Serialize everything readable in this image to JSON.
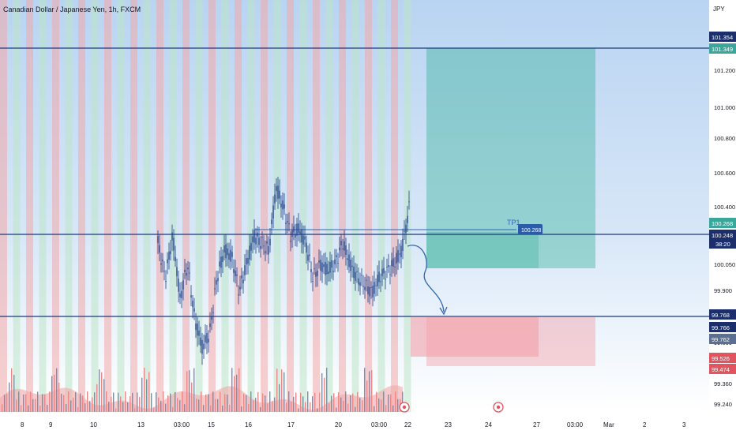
{
  "header": {
    "title": "Canadian Dollar / Japanese Yen, 1h, FXCM",
    "currency": "JPY"
  },
  "colors": {
    "grid": "#eef0f3",
    "up": "#1e3f8a",
    "down": "#1e3f8a",
    "profit_zone": "#1aa88a",
    "loss_zone": "#f3a0a8",
    "horizontal_line": "#1c3a7a",
    "band_red": "#f3aaaa",
    "band_green": "#bde6c8",
    "volume_area": "#f2a8a8",
    "axis_text": "#131722",
    "tag_dark": "#1c2f6a",
    "tag_blue": "#2a5ca8",
    "tag_teal": "#3aa79a",
    "tag_red": "#e05560"
  },
  "price_axis": {
    "ticks": [
      "101.200",
      "101.000",
      "100.800",
      "100.600",
      "100.400",
      "100.050",
      "99.900",
      "99.600",
      "99.360",
      "99.240"
    ],
    "tags": [
      {
        "value": "101.354",
        "style": "dark"
      },
      {
        "value": "101.349",
        "style": "teal"
      },
      {
        "value": "100.268",
        "style": "teal"
      },
      {
        "value": "100.248",
        "style": "dark",
        "sub": "38:20"
      },
      {
        "value": "99.768",
        "style": "dark"
      },
      {
        "value": "99.766",
        "style": "dark"
      },
      {
        "value": "99.762",
        "style": "grey"
      },
      {
        "value": "99.526",
        "style": "red"
      },
      {
        "value": "99.474",
        "style": "red"
      }
    ]
  },
  "time_axis": {
    "labels": [
      "8",
      "9",
      "10",
      "13",
      "03:00",
      "15",
      "16",
      "17",
      "20",
      "03:00",
      "22",
      "23",
      "24",
      "27",
      "03:00",
      "Mar",
      "2",
      "3"
    ]
  },
  "annotations": {
    "tp_label": "TP1",
    "tp_value": "100.268"
  },
  "chart_data": {
    "type": "candlestick",
    "title": "Canadian Dollar / Japanese Yen, 1h, FXCM",
    "ylabel": "JPY",
    "ylim": [
      99.2,
      101.45
    ],
    "horizontal_levels": [
      101.354,
      100.248,
      99.768
    ],
    "trade_levels": {
      "take_profit": 100.268,
      "entry": 99.768,
      "stop_zone": [
        99.526,
        99.474
      ]
    },
    "close_path": [
      99.95,
      99.7,
      100.0,
      99.55,
      99.8,
      99.4,
      99.2,
      99.3,
      99.7,
      99.9,
      99.85,
      99.6,
      99.8,
      100.0,
      99.95,
      99.9,
      100.35,
      100.2,
      100.0,
      100.05,
      99.95,
      99.7,
      99.8,
      99.75,
      99.8,
      99.95,
      99.8,
      99.7,
      99.65,
      99.6,
      99.7,
      99.75,
      99.8,
      99.9,
      100.2
    ],
    "projected_path": "rise then fall to 99.768"
  }
}
